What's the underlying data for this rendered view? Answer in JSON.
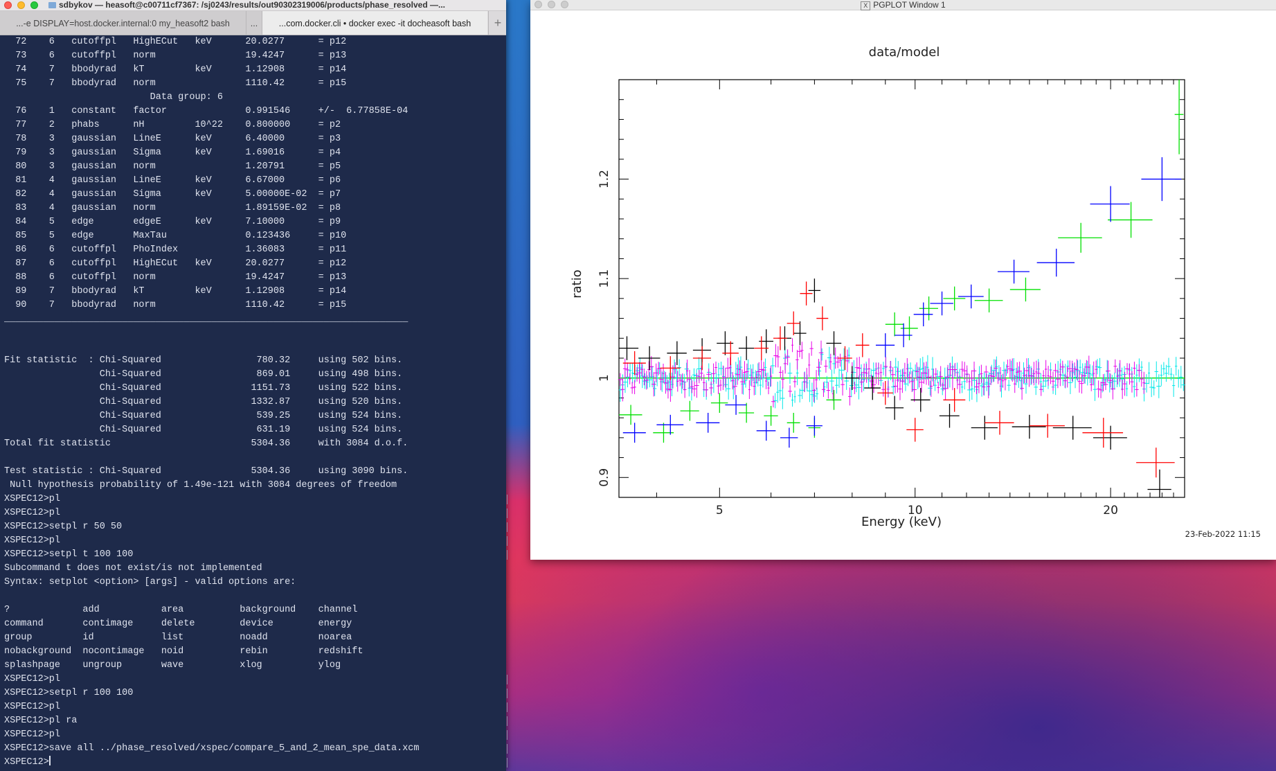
{
  "terminal": {
    "title": "sdbykov — heasoft@c00711cf7367: /sj0243/results/out90302319006/products/phase_resolved —...",
    "tabs": [
      {
        "label": "...-e DISPLAY=host.docker.internal:0 my_heasoft2 bash"
      },
      {
        "label": "..."
      },
      {
        "label": "...com.docker.cli • docker exec -it docheasoft bash"
      }
    ],
    "add_tab": "+",
    "lines": [
      "  72    6   cutoffpl   HighECut   keV      20.0277      = p12",
      "  73    6   cutoffpl   norm                19.4247      = p13",
      "  74    7   bbodyrad   kT         keV      1.12908      = p14",
      "  75    7   bbodyrad   norm                1110.42      = p15",
      "                          Data group: 6",
      "  76    1   constant   factor              0.991546     +/-  6.77858E-04",
      "  77    2   phabs      nH         10^22    0.800000     = p2",
      "  78    3   gaussian   LineE      keV      6.40000      = p3",
      "  79    3   gaussian   Sigma      keV      1.69016      = p4",
      "  80    3   gaussian   norm                1.20791      = p5",
      "  81    4   gaussian   LineE      keV      6.67000      = p6",
      "  82    4   gaussian   Sigma      keV      5.00000E-02  = p7",
      "  83    4   gaussian   norm                1.89159E-02  = p8",
      "  84    5   edge       edgeE      keV      7.10000      = p9",
      "  85    5   edge       MaxTau              0.123436     = p10",
      "  86    6   cutoffpl   PhoIndex            1.36083      = p11",
      "  87    6   cutoffpl   HighECut   keV      20.0277      = p12",
      "  88    6   cutoffpl   norm                19.4247      = p13",
      "  89    7   bbodyrad   kT         keV      1.12908      = p14",
      "  90    7   bbodyrad   norm                1110.42      = p15",
      "________________________________________________________________________",
      "",
      "",
      "Fit statistic  : Chi-Squared                 780.32     using 502 bins.",
      "                 Chi-Squared                 869.01     using 498 bins.",
      "                 Chi-Squared                1151.73     using 522 bins.",
      "                 Chi-Squared                1332.87     using 520 bins.",
      "                 Chi-Squared                 539.25     using 524 bins.",
      "                 Chi-Squared                 631.19     using 524 bins.",
      "Total fit statistic                         5304.36     with 3084 d.o.f.",
      "",
      "Test statistic : Chi-Squared                5304.36     using 3090 bins.",
      " Null hypothesis probability of 1.49e-121 with 3084 degrees of freedom",
      "XSPEC12>pl",
      "XSPEC12>pl",
      "XSPEC12>setpl r 50 50",
      "XSPEC12>pl",
      "XSPEC12>setpl t 100 100",
      "Subcommand t does not exist/is not implemented",
      "Syntax: setplot <option> [args] - valid options are:",
      "",
      "?             add           area          background    channel",
      "command       contimage     delete        device        energy",
      "group         id            list          noadd         noarea",
      "nobackground  nocontimage   noid          rebin         redshift",
      "splashpage    ungroup       wave          xlog          ylog",
      "XSPEC12>pl",
      "XSPEC12>setpl r 100 100",
      "XSPEC12>pl",
      "XSPEC12>pl ra",
      "XSPEC12>pl",
      "XSPEC12>save all ../phase_resolved/xspec/compare_5_and_2_mean_spe_data.xcm",
      "XSPEC12>"
    ]
  },
  "pgplot": {
    "window_title": "PGPLOT Window 1",
    "x_icon": "X",
    "timestamp": "23-Feb-2022 11:15"
  },
  "colors": {
    "black": "#000000",
    "red": "#ff0000",
    "green": "#00e000",
    "blue": "#0000ff",
    "cyan": "#00e8e8",
    "magenta": "#e800e8"
  },
  "chart_data": {
    "type": "scatter",
    "title": "data/model",
    "xlabel": "Energy (keV)",
    "ylabel": "ratio",
    "xscale": "log",
    "xlim": [
      3.5,
      26.0
    ],
    "ylim": [
      0.88,
      1.3
    ],
    "xticks": [
      5,
      10,
      20
    ],
    "yticks": [
      0.9,
      1,
      1.1,
      1.2
    ],
    "model_line": 1.0,
    "series": [
      {
        "color": "black",
        "points": [
          {
            "x": 3.6,
            "y": 1.03,
            "xerr": 0.15,
            "yerr": 0.012
          },
          {
            "x": 3.9,
            "y": 1.02,
            "xerr": 0.15,
            "yerr": 0.012
          },
          {
            "x": 4.3,
            "y": 1.025,
            "xerr": 0.15,
            "yerr": 0.012
          },
          {
            "x": 4.7,
            "y": 1.028,
            "xerr": 0.15,
            "yerr": 0.012
          },
          {
            "x": 5.1,
            "y": 1.035,
            "xerr": 0.15,
            "yerr": 0.012
          },
          {
            "x": 5.5,
            "y": 1.03,
            "xerr": 0.15,
            "yerr": 0.012
          },
          {
            "x": 5.9,
            "y": 1.037,
            "xerr": 0.15,
            "yerr": 0.012
          },
          {
            "x": 6.3,
            "y": 1.04,
            "xerr": 0.15,
            "yerr": 0.012
          },
          {
            "x": 6.65,
            "y": 1.045,
            "xerr": 0.15,
            "yerr": 0.012
          },
          {
            "x": 7.0,
            "y": 1.088,
            "xerr": 0.15,
            "yerr": 0.012
          },
          {
            "x": 7.5,
            "y": 1.035,
            "xerr": 0.2,
            "yerr": 0.012
          },
          {
            "x": 8.0,
            "y": 1.0,
            "xerr": 0.2,
            "yerr": 0.012
          },
          {
            "x": 8.6,
            "y": 0.99,
            "xerr": 0.25,
            "yerr": 0.012
          },
          {
            "x": 9.3,
            "y": 0.97,
            "xerr": 0.3,
            "yerr": 0.012
          },
          {
            "x": 10.2,
            "y": 0.978,
            "xerr": 0.35,
            "yerr": 0.012
          },
          {
            "x": 11.3,
            "y": 0.962,
            "xerr": 0.4,
            "yerr": 0.012
          },
          {
            "x": 12.8,
            "y": 0.95,
            "xerr": 0.6,
            "yerr": 0.012
          },
          {
            "x": 15.0,
            "y": 0.951,
            "xerr": 0.9,
            "yerr": 0.012
          },
          {
            "x": 17.5,
            "y": 0.95,
            "xerr": 1.2,
            "yerr": 0.012
          },
          {
            "x": 20.0,
            "y": 0.94,
            "xerr": 1.2,
            "yerr": 0.012
          },
          {
            "x": 23.8,
            "y": 0.888,
            "xerr": 1.0,
            "yerr": 0.02
          }
        ]
      },
      {
        "color": "red",
        "points": [
          {
            "x": 3.7,
            "y": 1.015,
            "xerr": 0.15,
            "yerr": 0.012
          },
          {
            "x": 4.2,
            "y": 1.01,
            "xerr": 0.15,
            "yerr": 0.012
          },
          {
            "x": 4.7,
            "y": 1.02,
            "xerr": 0.15,
            "yerr": 0.012
          },
          {
            "x": 5.2,
            "y": 1.025,
            "xerr": 0.15,
            "yerr": 0.012
          },
          {
            "x": 5.8,
            "y": 1.03,
            "xerr": 0.15,
            "yerr": 0.012
          },
          {
            "x": 6.2,
            "y": 1.04,
            "xerr": 0.15,
            "yerr": 0.012
          },
          {
            "x": 6.5,
            "y": 1.055,
            "xerr": 0.15,
            "yerr": 0.012
          },
          {
            "x": 6.8,
            "y": 1.085,
            "xerr": 0.15,
            "yerr": 0.012
          },
          {
            "x": 7.2,
            "y": 1.06,
            "xerr": 0.15,
            "yerr": 0.012
          },
          {
            "x": 7.8,
            "y": 1.02,
            "xerr": 0.2,
            "yerr": 0.012
          },
          {
            "x": 8.3,
            "y": 1.033,
            "xerr": 0.2,
            "yerr": 0.012
          },
          {
            "x": 9.0,
            "y": 0.985,
            "xerr": 0.25,
            "yerr": 0.012
          },
          {
            "x": 10.0,
            "y": 0.948,
            "xerr": 0.3,
            "yerr": 0.012
          },
          {
            "x": 11.5,
            "y": 0.978,
            "xerr": 0.45,
            "yerr": 0.012
          },
          {
            "x": 13.5,
            "y": 0.955,
            "xerr": 0.7,
            "yerr": 0.012
          },
          {
            "x": 16.0,
            "y": 0.952,
            "xerr": 1.0,
            "yerr": 0.012
          },
          {
            "x": 19.5,
            "y": 0.945,
            "xerr": 1.4,
            "yerr": 0.015
          },
          {
            "x": 23.5,
            "y": 0.915,
            "xerr": 1.6,
            "yerr": 0.015
          }
        ]
      },
      {
        "color": "green",
        "points": [
          {
            "x": 3.65,
            "y": 0.963,
            "xerr": 0.15,
            "yerr": 0.01
          },
          {
            "x": 4.1,
            "y": 0.945,
            "xerr": 0.15,
            "yerr": 0.01
          },
          {
            "x": 4.5,
            "y": 0.967,
            "xerr": 0.15,
            "yerr": 0.01
          },
          {
            "x": 5.0,
            "y": 0.975,
            "xerr": 0.15,
            "yerr": 0.01
          },
          {
            "x": 5.5,
            "y": 0.965,
            "xerr": 0.15,
            "yerr": 0.01
          },
          {
            "x": 6.0,
            "y": 0.962,
            "xerr": 0.15,
            "yerr": 0.01
          },
          {
            "x": 6.5,
            "y": 0.955,
            "xerr": 0.15,
            "yerr": 0.01
          },
          {
            "x": 7.0,
            "y": 0.95,
            "xerr": 0.15,
            "yerr": 0.01
          },
          {
            "x": 7.5,
            "y": 0.978,
            "xerr": 0.2,
            "yerr": 0.01
          },
          {
            "x": 9.3,
            "y": 1.054,
            "xerr": 0.3,
            "yerr": 0.012
          },
          {
            "x": 9.8,
            "y": 1.05,
            "xerr": 0.3,
            "yerr": 0.012
          },
          {
            "x": 10.5,
            "y": 1.07,
            "xerr": 0.35,
            "yerr": 0.012
          },
          {
            "x": 11.5,
            "y": 1.08,
            "xerr": 0.45,
            "yerr": 0.012
          },
          {
            "x": 13.0,
            "y": 1.078,
            "xerr": 0.65,
            "yerr": 0.012
          },
          {
            "x": 14.8,
            "y": 1.089,
            "xerr": 0.8,
            "yerr": 0.012
          },
          {
            "x": 18.0,
            "y": 1.141,
            "xerr": 1.4,
            "yerr": 0.015
          },
          {
            "x": 21.5,
            "y": 1.159,
            "xerr": 1.7,
            "yerr": 0.018
          },
          {
            "x": 25.5,
            "y": 1.265,
            "xerr": 0.4,
            "yerr": 0.04
          }
        ]
      },
      {
        "color": "blue",
        "points": [
          {
            "x": 3.7,
            "y": 0.945,
            "xerr": 0.15,
            "yerr": 0.01
          },
          {
            "x": 4.2,
            "y": 0.953,
            "xerr": 0.2,
            "yerr": 0.01
          },
          {
            "x": 4.8,
            "y": 0.955,
            "xerr": 0.2,
            "yerr": 0.01
          },
          {
            "x": 5.3,
            "y": 0.973,
            "xerr": 0.2,
            "yerr": 0.01
          },
          {
            "x": 5.9,
            "y": 0.947,
            "xerr": 0.2,
            "yerr": 0.01
          },
          {
            "x": 6.4,
            "y": 0.94,
            "xerr": 0.2,
            "yerr": 0.01
          },
          {
            "x": 7.0,
            "y": 0.952,
            "xerr": 0.2,
            "yerr": 0.01
          },
          {
            "x": 9.0,
            "y": 1.033,
            "xerr": 0.3,
            "yerr": 0.012
          },
          {
            "x": 9.6,
            "y": 1.043,
            "xerr": 0.3,
            "yerr": 0.012
          },
          {
            "x": 10.3,
            "y": 1.064,
            "xerr": 0.35,
            "yerr": 0.012
          },
          {
            "x": 11.0,
            "y": 1.075,
            "xerr": 0.45,
            "yerr": 0.012
          },
          {
            "x": 12.2,
            "y": 1.082,
            "xerr": 0.55,
            "yerr": 0.012
          },
          {
            "x": 14.2,
            "y": 1.107,
            "xerr": 0.8,
            "yerr": 0.012
          },
          {
            "x": 16.5,
            "y": 1.116,
            "xerr": 1.1,
            "yerr": 0.014
          },
          {
            "x": 20.0,
            "y": 1.175,
            "xerr": 1.4,
            "yerr": 0.018
          },
          {
            "x": 24.0,
            "y": 1.2,
            "xerr": 1.7,
            "yerr": 0.022
          }
        ]
      }
    ]
  }
}
